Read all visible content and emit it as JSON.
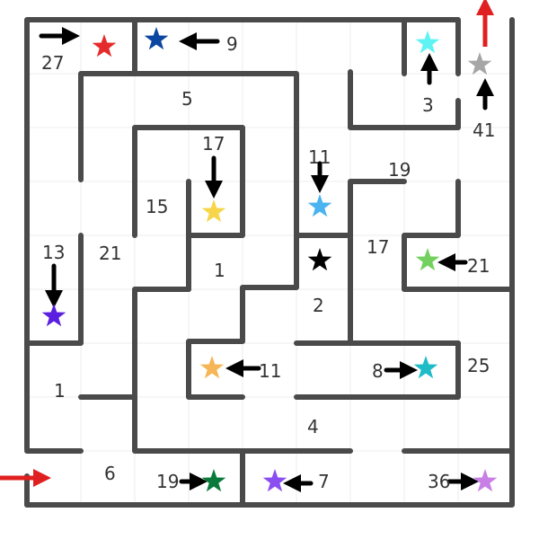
{
  "maze": {
    "colors": {
      "wall": "#4a4a4a",
      "grid": "#eeeeee",
      "arrow": "#000000",
      "entry_exit_arrow": "#e02020",
      "label": "#333333"
    },
    "labels": {
      "l27": "27",
      "l9": "9",
      "l5": "5",
      "l17a": "17",
      "l3": "3",
      "l41": "41",
      "l11a": "11",
      "l19a": "19",
      "l15": "15",
      "l13": "13",
      "l21a": "21",
      "l1a": "1",
      "l17b": "17",
      "l21b": "21",
      "l2": "2",
      "l25": "25",
      "l11b": "11",
      "l8": "8",
      "l1b": "1",
      "l4": "4",
      "l6": "6",
      "l19b": "19",
      "l7": "7",
      "l36": "36"
    },
    "stars": [
      {
        "id": "red",
        "color": "#e52b2b"
      },
      {
        "id": "dark-blue",
        "color": "#0b47a1"
      },
      {
        "id": "cyan",
        "color": "#5ff3f3"
      },
      {
        "id": "gray",
        "color": "#a6a6a6"
      },
      {
        "id": "sky-blue",
        "color": "#4ab3f0"
      },
      {
        "id": "yellow",
        "color": "#f7d54a"
      },
      {
        "id": "black",
        "color": "#000000"
      },
      {
        "id": "light-green",
        "color": "#74d160"
      },
      {
        "id": "violet",
        "color": "#5b1fe0"
      },
      {
        "id": "orange",
        "color": "#f6b657"
      },
      {
        "id": "teal",
        "color": "#1fbcc8"
      },
      {
        "id": "green",
        "color": "#0a7a3a"
      },
      {
        "id": "purple",
        "color": "#8b4ef0"
      },
      {
        "id": "lilac",
        "color": "#c77fe6"
      }
    ]
  }
}
